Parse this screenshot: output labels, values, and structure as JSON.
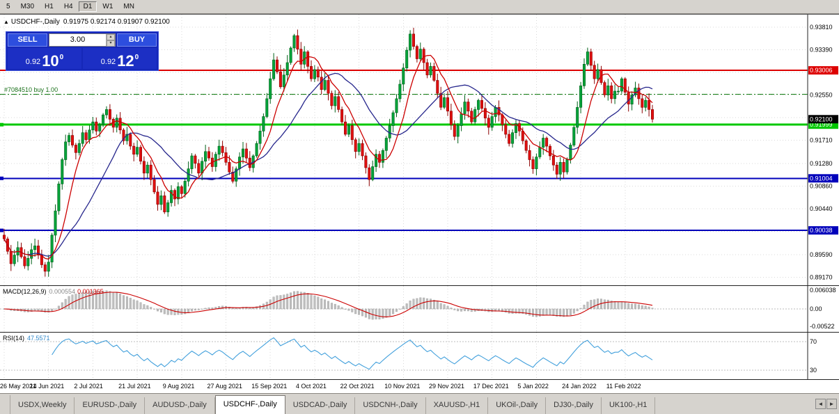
{
  "toolbar": {
    "timeframes": [
      "5",
      "M30",
      "H1",
      "H4",
      "D1",
      "W1",
      "MN"
    ],
    "active": "D1"
  },
  "chart": {
    "collapse_icon": "▲",
    "symbol": "USDCHF-,Daily",
    "ohlc": "0.91975 0.92174 0.91907 0.92100"
  },
  "trade": {
    "sell_label": "SELL",
    "buy_label": "BUY",
    "volume": "3.00",
    "sell_price_small": "0.92",
    "sell_price_big": "10",
    "sell_price_sup": "0",
    "buy_price_small": "0.92",
    "buy_price_big": "12",
    "buy_price_sup": "0",
    "spin_up_icon": "▴",
    "spin_down_icon": "▾"
  },
  "position": {
    "label": "#7084510 buy 1.00",
    "price": 0.9256
  },
  "chart_data": {
    "main": {
      "type": "candlestick",
      "symbol": "USDCHF-,Daily",
      "ohlc_current": {
        "open": 0.91975,
        "high": 0.92174,
        "low": 0.91907,
        "close": 0.921
      },
      "price_top": 0.9404,
      "price_bottom": 0.8902,
      "y_ticks": [
        "0.93810",
        "0.93390",
        "0.92970",
        "0.92550",
        "0.92130",
        "0.91710",
        "0.91280",
        "0.90860",
        "0.90440",
        "0.90020",
        "0.89590",
        "0.89170"
      ],
      "x_labels": [
        "26 May 2021",
        "14 Jun 2021",
        "2 Jul 2021",
        "21 Jul 2021",
        "9 Aug 2021",
        "27 Aug 2021",
        "15 Sep 2021",
        "4 Oct 2021",
        "22 Oct 2021",
        "10 Nov 2021",
        "29 Nov 2021",
        "17 Dec 2021",
        "5 Jan 2022",
        "24 Jan 2022",
        "11 Feb 2022"
      ],
      "x_label_every": 13,
      "first_open": 0.8995,
      "closes": [
        0.8988,
        0.8965,
        0.8942,
        0.8958,
        0.8972,
        0.8955,
        0.8938,
        0.8952,
        0.8968,
        0.8975,
        0.8958,
        0.894,
        0.8928,
        0.8945,
        0.8995,
        0.904,
        0.909,
        0.9135,
        0.9168,
        0.918,
        0.9162,
        0.9148,
        0.9165,
        0.9185,
        0.9172,
        0.919,
        0.9205,
        0.9188,
        0.92,
        0.9218,
        0.9228,
        0.921,
        0.9195,
        0.9212,
        0.919,
        0.917,
        0.9182,
        0.916,
        0.9145,
        0.9158,
        0.9132,
        0.911,
        0.9125,
        0.9098,
        0.9075,
        0.9052,
        0.9068,
        0.9038,
        0.9055,
        0.9078,
        0.9062,
        0.9085,
        0.9072,
        0.9095,
        0.9118,
        0.9142,
        0.9128,
        0.911,
        0.9132,
        0.915,
        0.9138,
        0.9122,
        0.9145,
        0.916,
        0.9148,
        0.913,
        0.9112,
        0.9095,
        0.9118,
        0.914,
        0.9155,
        0.9138,
        0.912,
        0.9142,
        0.9165,
        0.9188,
        0.9215,
        0.9248,
        0.9285,
        0.932,
        0.9298,
        0.927,
        0.9292,
        0.9315,
        0.9342,
        0.9365,
        0.934,
        0.9312,
        0.9335,
        0.9308,
        0.9285,
        0.9302,
        0.9288,
        0.9265,
        0.9282,
        0.9258,
        0.9235,
        0.9252,
        0.9228,
        0.9205,
        0.9182,
        0.9198,
        0.9172,
        0.915,
        0.9165,
        0.9142,
        0.912,
        0.9098,
        0.9122,
        0.9145,
        0.913,
        0.9152,
        0.9175,
        0.9198,
        0.9222,
        0.9248,
        0.9275,
        0.9305,
        0.9338,
        0.9368,
        0.9345,
        0.9322,
        0.934,
        0.9315,
        0.9292,
        0.9308,
        0.9282,
        0.9258,
        0.9232,
        0.925,
        0.9225,
        0.92,
        0.9178,
        0.9198,
        0.922,
        0.9242,
        0.9225,
        0.9205,
        0.9228,
        0.9245,
        0.923,
        0.9212,
        0.9195,
        0.9215,
        0.9232,
        0.9218,
        0.92,
        0.9182,
        0.9165,
        0.9185,
        0.9202,
        0.9188,
        0.917,
        0.9152,
        0.9135,
        0.9118,
        0.914,
        0.9158,
        0.9175,
        0.916,
        0.9142,
        0.9125,
        0.9108,
        0.913,
        0.9112,
        0.9135,
        0.9162,
        0.9195,
        0.9232,
        0.9272,
        0.9312,
        0.9335,
        0.931,
        0.9285,
        0.9302,
        0.9278,
        0.9255,
        0.9272,
        0.9248,
        0.9262,
        0.9262,
        0.9285,
        0.926,
        0.9238,
        0.9255,
        0.9268,
        0.9248,
        0.9232,
        0.9245,
        0.9228,
        0.921
      ],
      "hlines": [
        {
          "price": 0.93006,
          "label": "0.93006",
          "color": "#dd0000",
          "width": 2,
          "marker": false
        },
        {
          "price": 0.91999,
          "label": "0.91999",
          "color": "#00c800",
          "width": 3,
          "marker": true
        },
        {
          "price": 0.91004,
          "label": "0.91004",
          "color": "#0000bb",
          "width": 2,
          "marker": true
        },
        {
          "price": 0.90038,
          "label": "0.90038",
          "color": "#0000bb",
          "width": 2,
          "marker": true
        }
      ],
      "bid_marker": {
        "price": 0.921,
        "label": "0.92100",
        "color": "#000000"
      },
      "colors": {
        "up": "#00a33a",
        "up_border": "#006018",
        "down": "#e01010",
        "down_border": "#8c0000",
        "ma_fast": "#cc0000",
        "ma_slow": "#26268c",
        "grid": "#d8d8d8"
      }
    },
    "macd": {
      "type": "bar",
      "label": "MACD(12,26,9)",
      "value_main": "0.000554",
      "value_signal": "0.001365",
      "params": {
        "fast": 12,
        "slow": 26,
        "signal": 9
      },
      "axis_labels": [
        "0.006038",
        "0.00",
        "-0.00522"
      ],
      "histogram_color": "#bfbfbf",
      "histogram_border": "#9d9d9d",
      "signal_color": "#cc0000"
    },
    "rsi": {
      "type": "line",
      "label": "RSI(14)",
      "value": "47.5571",
      "period": 14,
      "levels": [
        "70",
        "30"
      ],
      "line_color": "#42a0dc"
    }
  },
  "tab_bar": {
    "tabs": [
      "USDX,Weekly",
      "EURUSD-,Daily",
      "AUDUSD-,Daily",
      "USDCHF-,Daily",
      "USDCAD-,Daily",
      "USDCNH-,Daily",
      "XAUUSD-,H1",
      "UKOil-,Daily",
      "DJ30-,Daily",
      "UK100-,H1"
    ],
    "active": "USDCHF-,Daily",
    "scroll_left_icon": "◄",
    "scroll_right_icon": "►"
  }
}
